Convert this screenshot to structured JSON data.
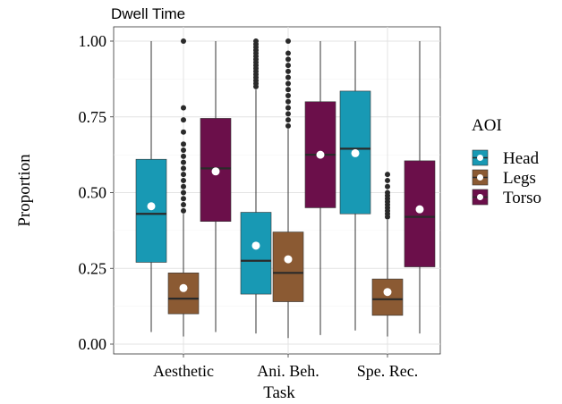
{
  "chart_data": {
    "type": "boxplot",
    "title": "Dwell Time",
    "xlabel": "Task",
    "ylabel": "Proportion",
    "ylim": [
      0,
      1
    ],
    "yticks": [
      0,
      0.25,
      0.5,
      0.75,
      1.0
    ],
    "ytick_labels": [
      "0.00",
      "0.25",
      "0.50",
      "0.75",
      "1.00"
    ],
    "categories": [
      "Aesthetic",
      "Ani. Beh.",
      "Spe. Rec."
    ],
    "grid": true,
    "legend": {
      "title": "AOI",
      "position": "right"
    },
    "series": [
      {
        "name": "Head",
        "color": "#1899b4",
        "boxes": [
          {
            "whisker_low": 0.04,
            "q1": 0.27,
            "median": 0.43,
            "q3": 0.61,
            "whisker_high": 1.0,
            "mean": 0.455,
            "outliers": []
          },
          {
            "whisker_low": 0.035,
            "q1": 0.165,
            "median": 0.275,
            "q3": 0.435,
            "whisker_high": 0.84,
            "mean": 0.325,
            "outliers": [
              0.85,
              0.86,
              0.87,
              0.88,
              0.89,
              0.9,
              0.91,
              0.92,
              0.93,
              0.94,
              0.95,
              0.96,
              0.97,
              0.98,
              0.99,
              1.0
            ]
          },
          {
            "whisker_low": 0.045,
            "q1": 0.43,
            "median": 0.645,
            "q3": 0.835,
            "whisker_high": 1.0,
            "mean": 0.63,
            "outliers": []
          }
        ]
      },
      {
        "name": "Legs",
        "color": "#8b5a33",
        "boxes": [
          {
            "whisker_low": 0.025,
            "q1": 0.1,
            "median": 0.15,
            "q3": 0.235,
            "whisker_high": 0.43,
            "mean": 0.185,
            "outliers": [
              0.44,
              0.46,
              0.48,
              0.5,
              0.52,
              0.54,
              0.56,
              0.58,
              0.6,
              0.62,
              0.64,
              0.66,
              0.7,
              0.74,
              0.78,
              1.0
            ]
          },
          {
            "whisker_low": 0.02,
            "q1": 0.14,
            "median": 0.235,
            "q3": 0.37,
            "whisker_high": 0.71,
            "mean": 0.28,
            "outliers": [
              0.72,
              0.74,
              0.76,
              0.78,
              0.8,
              0.82,
              0.84,
              0.86,
              0.88,
              0.9,
              0.92,
              0.94,
              0.96,
              1.0
            ]
          },
          {
            "whisker_low": 0.025,
            "q1": 0.095,
            "median": 0.148,
            "q3": 0.215,
            "whisker_high": 0.41,
            "mean": 0.172,
            "outliers": [
              0.42,
              0.43,
              0.44,
              0.45,
              0.46,
              0.47,
              0.48,
              0.49,
              0.5,
              0.52,
              0.54,
              0.56
            ]
          }
        ]
      },
      {
        "name": "Torso",
        "color": "#6b0f4a",
        "boxes": [
          {
            "whisker_low": 0.04,
            "q1": 0.405,
            "median": 0.58,
            "q3": 0.745,
            "whisker_high": 1.0,
            "mean": 0.57,
            "outliers": []
          },
          {
            "whisker_low": 0.03,
            "q1": 0.45,
            "median": 0.625,
            "q3": 0.8,
            "whisker_high": 1.0,
            "mean": 0.625,
            "outliers": []
          },
          {
            "whisker_low": 0.035,
            "q1": 0.255,
            "median": 0.42,
            "q3": 0.605,
            "whisker_high": 1.0,
            "mean": 0.445,
            "outliers": []
          }
        ]
      }
    ]
  }
}
